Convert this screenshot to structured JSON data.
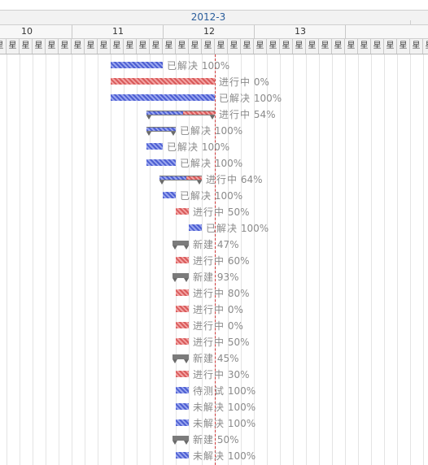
{
  "header": {
    "month": "2012-3",
    "days": [
      "10",
      "11",
      "12",
      "13"
    ],
    "weekday_char": "星"
  },
  "colors": {
    "resolved": "#4d5fd2",
    "in_progress": "#d95b5b",
    "summary": "#7b7b7b",
    "today_line": "#d03a3a"
  },
  "tasks": [
    {
      "status": "已解决",
      "pct": "100%",
      "kind": "blue",
      "start": 0.5,
      "end": 2.5
    },
    {
      "status": "进行中",
      "pct": "0%",
      "kind": "red",
      "start": 0.5,
      "end": 4.5
    },
    {
      "status": "已解决",
      "pct": "100%",
      "kind": "blue",
      "start": 0.5,
      "end": 4.5
    },
    {
      "status": "进行中",
      "pct": "54%",
      "kind": "summary",
      "start": 1.875,
      "end": 4.5,
      "progress": 0.54
    },
    {
      "status": "已解决",
      "pct": "100%",
      "kind": "summary-blue",
      "start": 1.875,
      "end": 3.0
    },
    {
      "status": "已解决",
      "pct": "100%",
      "kind": "blue",
      "start": 1.875,
      "end": 2.5
    },
    {
      "status": "已解决",
      "pct": "100%",
      "kind": "blue",
      "start": 1.875,
      "end": 3.0
    },
    {
      "status": "进行中",
      "pct": "64%",
      "kind": "summary",
      "start": 2.375,
      "end": 4.0,
      "progress": 0.64
    },
    {
      "status": "已解决",
      "pct": "100%",
      "kind": "blue",
      "start": 2.5,
      "end": 3.0
    },
    {
      "status": "进行中",
      "pct": "50%",
      "kind": "red",
      "start": 3.0,
      "end": 3.5
    },
    {
      "status": "已解决",
      "pct": "100%",
      "kind": "blue",
      "start": 3.5,
      "end": 4.0
    },
    {
      "status": "新建",
      "pct": "47%",
      "kind": "summary-red",
      "start": 2.875,
      "end": 3.5
    },
    {
      "status": "进行中",
      "pct": "60%",
      "kind": "red",
      "start": 3.0,
      "end": 3.5
    },
    {
      "status": "新建",
      "pct": "93%",
      "kind": "summary-red",
      "start": 2.875,
      "end": 3.5
    },
    {
      "status": "进行中",
      "pct": "80%",
      "kind": "red",
      "start": 3.0,
      "end": 3.5
    },
    {
      "status": "进行中",
      "pct": "0%",
      "kind": "red",
      "start": 3.0,
      "end": 3.5
    },
    {
      "status": "进行中",
      "pct": "0%",
      "kind": "red",
      "start": 3.0,
      "end": 3.5
    },
    {
      "status": "进行中",
      "pct": "50%",
      "kind": "red",
      "start": 3.0,
      "end": 3.5
    },
    {
      "status": "新建",
      "pct": "45%",
      "kind": "summary-red",
      "start": 2.875,
      "end": 3.5
    },
    {
      "status": "进行中",
      "pct": "30%",
      "kind": "red",
      "start": 3.0,
      "end": 3.5
    },
    {
      "status": "待测试",
      "pct": "100%",
      "kind": "blue",
      "start": 3.0,
      "end": 3.5
    },
    {
      "status": "未解决",
      "pct": "100%",
      "kind": "blue",
      "start": 3.0,
      "end": 3.5
    },
    {
      "status": "未解决",
      "pct": "100%",
      "kind": "blue",
      "start": 3.0,
      "end": 3.5
    },
    {
      "status": "新建",
      "pct": "50%",
      "kind": "summary-red",
      "start": 2.875,
      "end": 3.5
    },
    {
      "status": "未解决",
      "pct": "100%",
      "kind": "blue",
      "start": 3.0,
      "end": 3.5
    }
  ]
}
